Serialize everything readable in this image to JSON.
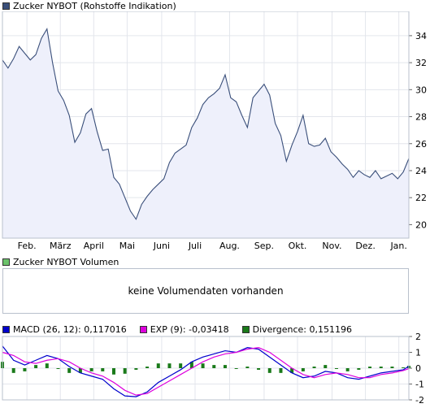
{
  "price_legend": {
    "label": "Zucker NYBOT (Rohstoffe Indikation)",
    "color": "#3a4f7a"
  },
  "volume_legend": {
    "label": "Zucker NYBOT Volumen",
    "color": "#6cc36c"
  },
  "volume_message": "keine Volumendaten vorhanden",
  "macd_legend": [
    {
      "label": "MACD (26, 12): 0,117016",
      "color": "#0000cc"
    },
    {
      "label": "EXP (9): -0,03418",
      "color": "#dd00dd"
    },
    {
      "label": "Divergence: 0,151196",
      "color": "#1a7a1a"
    }
  ],
  "chart_data": [
    {
      "type": "area",
      "title": "Zucker NYBOT (Rohstoffe Indikation)",
      "x_tick_labels": [
        "Feb.",
        "März",
        "April",
        "Mai",
        "Juni",
        "Juli",
        "Aug.",
        "Sep.",
        "Okt.",
        "Nov.",
        "Dez.",
        "Jan."
      ],
      "y_tick_labels": [
        "20",
        "22",
        "24",
        "26",
        "28",
        "30",
        "32",
        "34"
      ],
      "ylim": [
        19,
        35.8
      ],
      "grid": true,
      "series": [
        {
          "name": "Zucker NYBOT (Rohstoffe Indikation)",
          "x": [
            0,
            5,
            10,
            15,
            20,
            25,
            30,
            35,
            40,
            45,
            50,
            55,
            60,
            65,
            70,
            75,
            80,
            85,
            90,
            95,
            100,
            105,
            110,
            115,
            120,
            125,
            130,
            135,
            140,
            145,
            150,
            155,
            160,
            165,
            170,
            175,
            180,
            185,
            190,
            195,
            200,
            205,
            210,
            215,
            220,
            225,
            230,
            235,
            240,
            245,
            250,
            255,
            260,
            265,
            270,
            275,
            280,
            285,
            290,
            295,
            300,
            305,
            310,
            315,
            320,
            325,
            330,
            335,
            340,
            345,
            350,
            355,
            360,
            365
          ],
          "values": [
            32.2,
            31.6,
            32.3,
            33.2,
            32.7,
            32.2,
            32.6,
            33.8,
            34.5,
            32.0,
            29.9,
            29.2,
            28.1,
            26.1,
            26.8,
            28.2,
            28.6,
            26.9,
            25.5,
            25.6,
            23.5,
            23.0,
            22.0,
            21.0,
            20.4,
            21.5,
            22.1,
            22.6,
            23.0,
            23.4,
            24.6,
            25.3,
            25.6,
            25.9,
            27.2,
            27.9,
            28.9,
            29.4,
            29.7,
            30.1,
            31.1,
            29.4,
            29.1,
            28.1,
            27.2,
            29.4,
            29.9,
            30.4,
            29.6,
            27.5,
            26.6,
            24.7,
            25.9,
            26.9,
            28.1,
            26.0,
            25.8,
            25.9,
            26.4,
            25.4,
            25.0,
            24.5,
            24.1,
            23.5,
            24.0,
            23.7,
            23.5,
            24.0,
            23.4,
            23.6,
            23.8,
            23.4,
            23.9,
            24.9
          ]
        }
      ]
    },
    {
      "type": "line",
      "title": "",
      "y_tick_labels": [
        "2",
        "1",
        "0",
        "-1",
        "-2"
      ],
      "ylim": [
        -2,
        2
      ],
      "grid": true,
      "series": [
        {
          "name": "MACD (26, 12)",
          "color": "#0000cc",
          "x": [
            0,
            10,
            20,
            30,
            40,
            50,
            60,
            70,
            80,
            90,
            100,
            110,
            120,
            130,
            140,
            150,
            160,
            170,
            180,
            190,
            200,
            210,
            220,
            230,
            240,
            250,
            260,
            270,
            280,
            290,
            300,
            310,
            320,
            330,
            340,
            350,
            360,
            365
          ],
          "values": [
            1.4,
            0.5,
            0.2,
            0.5,
            0.8,
            0.6,
            0.1,
            -0.3,
            -0.5,
            -0.7,
            -1.3,
            -1.75,
            -1.8,
            -1.5,
            -0.9,
            -0.5,
            -0.1,
            0.4,
            0.7,
            0.9,
            1.1,
            1.0,
            1.3,
            1.2,
            0.7,
            0.2,
            -0.3,
            -0.6,
            -0.5,
            -0.2,
            -0.3,
            -0.6,
            -0.7,
            -0.5,
            -0.3,
            -0.2,
            -0.1,
            0.12
          ]
        },
        {
          "name": "EXP (9)",
          "color": "#dd00dd",
          "x": [
            0,
            10,
            20,
            30,
            40,
            50,
            60,
            70,
            80,
            90,
            100,
            110,
            120,
            130,
            140,
            150,
            160,
            170,
            180,
            190,
            200,
            210,
            220,
            230,
            240,
            250,
            260,
            270,
            280,
            290,
            300,
            310,
            320,
            330,
            340,
            350,
            360,
            365
          ],
          "values": [
            1.0,
            0.8,
            0.4,
            0.3,
            0.5,
            0.6,
            0.4,
            0.0,
            -0.3,
            -0.5,
            -0.9,
            -1.4,
            -1.7,
            -1.6,
            -1.2,
            -0.8,
            -0.4,
            0.0,
            0.4,
            0.7,
            0.9,
            1.0,
            1.2,
            1.3,
            1.0,
            0.5,
            0.0,
            -0.4,
            -0.6,
            -0.4,
            -0.3,
            -0.4,
            -0.6,
            -0.6,
            -0.4,
            -0.3,
            -0.15,
            -0.03
          ]
        },
        {
          "name": "Divergence",
          "color": "#1a7a1a",
          "type": "bar",
          "x": [
            0,
            10,
            20,
            30,
            40,
            50,
            60,
            70,
            80,
            90,
            100,
            110,
            120,
            130,
            140,
            150,
            160,
            170,
            180,
            190,
            200,
            210,
            220,
            230,
            240,
            250,
            260,
            270,
            280,
            290,
            300,
            310,
            320,
            330,
            340,
            350,
            360,
            365
          ],
          "values": [
            0.4,
            -0.3,
            -0.2,
            0.2,
            0.3,
            0.0,
            -0.3,
            -0.3,
            -0.2,
            -0.2,
            -0.4,
            -0.35,
            -0.1,
            0.1,
            0.3,
            0.3,
            0.3,
            0.4,
            0.3,
            0.2,
            0.2,
            0.0,
            0.1,
            -0.1,
            -0.3,
            -0.3,
            -0.3,
            -0.2,
            0.1,
            0.2,
            0.0,
            -0.2,
            -0.1,
            0.1,
            0.1,
            0.1,
            0.05,
            0.15
          ]
        }
      ]
    }
  ]
}
